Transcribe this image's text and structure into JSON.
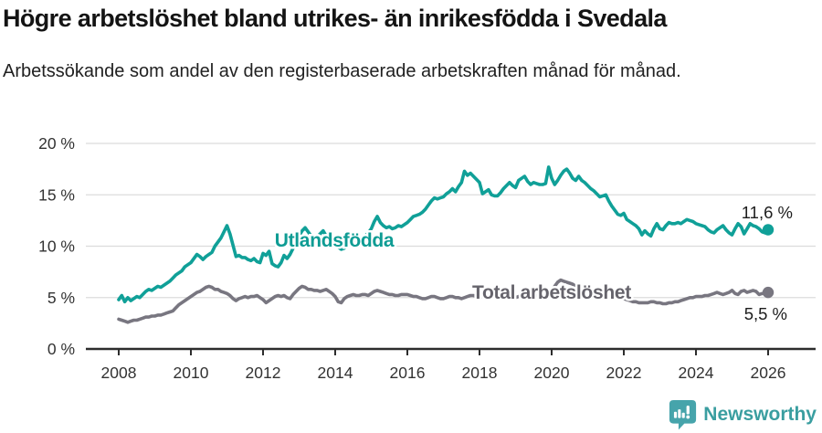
{
  "header": {
    "title": "Högre arbetslöshet bland utrikes- än inrikesfödda i Svedala",
    "subtitle": "Arbetssökande som andel av den registerbaserade arbetskraften månad för månad."
  },
  "footer": {
    "brand": "Newsworthy",
    "logo_icon": "bar-chart-speech-bubble-icon"
  },
  "chart_data": {
    "type": "line",
    "title": "Högre arbetslöshet bland utrikes- än inrikesfödda i Svedala",
    "subtitle": "Arbetssökande som andel av den registerbaserade arbetskraften månad för månad.",
    "x_unit": "year, monthly resolution",
    "x_start": 2008.0,
    "x_step": 0.0833,
    "xlim": [
      2007.1,
      2027.3
    ],
    "ylim": [
      0,
      20
    ],
    "grid": "horizontal",
    "legend": "inline-labels",
    "y_ticks": [
      {
        "v": 0,
        "label": "0 %"
      },
      {
        "v": 5,
        "label": "5 %"
      },
      {
        "v": 10,
        "label": "10 %"
      },
      {
        "v": 15,
        "label": "15 %"
      },
      {
        "v": 20,
        "label": "20 %"
      }
    ],
    "x_ticks": [
      {
        "v": 2008,
        "label": "2008"
      },
      {
        "v": 2010,
        "label": "2010"
      },
      {
        "v": 2012,
        "label": "2012"
      },
      {
        "v": 2014,
        "label": "2014"
      },
      {
        "v": 2016,
        "label": "2016"
      },
      {
        "v": 2018,
        "label": "2018"
      },
      {
        "v": 2020,
        "label": "2020"
      },
      {
        "v": 2022,
        "label": "2022"
      },
      {
        "v": 2024,
        "label": "2024"
      },
      {
        "v": 2026,
        "label": "2026"
      }
    ],
    "colors": {
      "grid": "#dcdcdc",
      "axis": "#2d2d2d",
      "tick_text": "#323232",
      "value_text": "#1d1d1d",
      "brand": "#3a9ea0",
      "brand_icon": "#46a4ab"
    },
    "series": [
      {
        "name": "Utlandsfödda",
        "color": "#10a098",
        "label_color": "#0f9c94",
        "end_label": "11,6 %",
        "end_value": 11.6,
        "values": [
          4.8,
          5.2,
          4.6,
          5.0,
          4.7,
          4.9,
          5.1,
          5.0,
          5.3,
          5.6,
          5.8,
          5.7,
          5.9,
          6.1,
          6.0,
          6.2,
          6.4,
          6.6,
          6.9,
          7.2,
          7.4,
          7.6,
          8.0,
          8.2,
          8.4,
          8.8,
          9.2,
          9.0,
          8.7,
          9.0,
          9.2,
          9.4,
          10.0,
          10.4,
          10.8,
          11.4,
          12.0,
          11.2,
          10.1,
          9.0,
          9.1,
          8.9,
          8.9,
          8.7,
          8.6,
          8.8,
          8.5,
          8.4,
          9.3,
          9.1,
          9.5,
          8.3,
          8.1,
          8.0,
          8.4,
          9.1,
          8.8,
          9.2,
          9.8,
          10.4,
          11.0,
          11.5,
          11.8,
          11.4,
          11.0,
          10.8,
          10.9,
          11.2,
          11.5,
          11.0,
          10.6,
          10.3,
          10.0,
          9.9,
          9.7,
          9.8,
          10.0,
          10.2,
          10.3,
          10.5,
          10.4,
          10.7,
          11.0,
          11.3,
          11.7,
          12.4,
          12.9,
          12.3,
          12.0,
          11.8,
          11.9,
          11.7,
          11.8,
          12.0,
          11.9,
          12.1,
          12.3,
          12.6,
          12.9,
          13.0,
          13.1,
          13.3,
          13.6,
          14.0,
          14.4,
          14.7,
          14.6,
          14.7,
          14.8,
          15.1,
          15.3,
          15.6,
          15.3,
          15.8,
          16.2,
          17.3,
          16.9,
          17.1,
          16.8,
          16.5,
          16.2,
          15.1,
          15.3,
          15.5,
          15.0,
          14.9,
          14.9,
          15.2,
          15.6,
          15.9,
          16.2,
          15.9,
          15.7,
          16.4,
          16.6,
          16.8,
          16.3,
          16.0,
          16.2,
          16.1,
          16.0,
          16.0,
          16.1,
          17.7,
          16.6,
          16.0,
          16.4,
          16.9,
          17.3,
          17.5,
          17.1,
          16.6,
          16.4,
          16.8,
          16.4,
          16.2,
          15.9,
          15.6,
          15.4,
          15.1,
          14.8,
          14.9,
          15.0,
          14.4,
          13.9,
          13.5,
          13.1,
          13.0,
          13.2,
          12.6,
          12.4,
          12.2,
          12.0,
          11.7,
          11.1,
          11.5,
          11.2,
          11.0,
          11.7,
          12.2,
          11.7,
          11.6,
          12.0,
          12.3,
          12.2,
          12.2,
          12.3,
          12.2,
          12.4,
          12.6,
          12.5,
          12.4,
          12.2,
          12.1,
          12.0,
          11.9,
          11.6,
          11.4,
          11.3,
          11.6,
          11.8,
          12.0,
          11.6,
          11.3,
          11.1,
          11.7,
          12.2,
          11.9,
          11.2,
          11.7,
          12.2,
          12.0,
          11.9,
          11.7,
          11.4,
          11.3,
          11.6
        ]
      },
      {
        "name": "Total arbetslöshet",
        "color": "#787680",
        "label_color": "#66646c",
        "end_label": "5,5 %",
        "end_value": 5.5,
        "values": [
          2.9,
          2.8,
          2.7,
          2.6,
          2.7,
          2.8,
          2.8,
          2.9,
          3.0,
          3.1,
          3.1,
          3.2,
          3.2,
          3.3,
          3.3,
          3.4,
          3.5,
          3.6,
          3.7,
          4.0,
          4.3,
          4.5,
          4.7,
          4.9,
          5.1,
          5.3,
          5.5,
          5.6,
          5.8,
          6.0,
          6.1,
          6.0,
          5.8,
          5.8,
          5.6,
          5.5,
          5.4,
          5.2,
          4.9,
          4.7,
          4.9,
          5.0,
          5.1,
          5.0,
          5.1,
          5.1,
          5.2,
          5.0,
          4.8,
          4.5,
          4.7,
          4.9,
          5.1,
          5.2,
          5.1,
          5.2,
          5.0,
          4.9,
          5.3,
          5.6,
          5.9,
          6.1,
          6.0,
          5.8,
          5.8,
          5.7,
          5.7,
          5.6,
          5.7,
          5.8,
          5.6,
          5.4,
          5.1,
          4.6,
          4.5,
          4.9,
          5.1,
          5.2,
          5.3,
          5.2,
          5.2,
          5.3,
          5.3,
          5.2,
          5.4,
          5.6,
          5.7,
          5.6,
          5.5,
          5.4,
          5.3,
          5.3,
          5.2,
          5.2,
          5.3,
          5.3,
          5.3,
          5.2,
          5.1,
          5.1,
          5.0,
          4.9,
          4.9,
          5.0,
          5.1,
          5.1,
          5.0,
          4.9,
          4.9,
          5.0,
          5.1,
          5.1,
          5.0,
          5.0,
          4.9,
          5.0,
          5.1,
          5.2,
          5.2,
          5.1,
          5.1,
          5.1,
          5.2,
          5.2,
          5.1,
          5.1,
          5.0,
          5.0,
          5.0,
          5.1,
          5.1,
          5.0,
          5.0,
          5.1,
          5.1,
          5.1,
          5.0,
          5.1,
          5.1,
          5.2,
          5.2,
          5.2,
          5.3,
          5.5,
          5.6,
          6.1,
          6.5,
          6.7,
          6.6,
          6.5,
          6.4,
          6.3,
          6.1,
          6.0,
          5.9,
          5.8,
          5.8,
          5.7,
          5.6,
          5.6,
          5.5,
          5.4,
          5.3,
          5.2,
          5.1,
          5.0,
          5.0,
          4.9,
          4.9,
          4.8,
          4.7,
          4.6,
          4.6,
          4.5,
          4.5,
          4.5,
          4.5,
          4.6,
          4.6,
          4.5,
          4.5,
          4.4,
          4.4,
          4.5,
          4.5,
          4.6,
          4.6,
          4.7,
          4.8,
          4.9,
          5.0,
          5.0,
          5.1,
          5.1,
          5.1,
          5.2,
          5.2,
          5.3,
          5.4,
          5.5,
          5.4,
          5.3,
          5.4,
          5.5,
          5.7,
          5.4,
          5.3,
          5.6,
          5.7,
          5.5,
          5.6,
          5.7,
          5.6,
          5.3,
          5.4,
          5.4,
          5.5
        ]
      }
    ]
  }
}
